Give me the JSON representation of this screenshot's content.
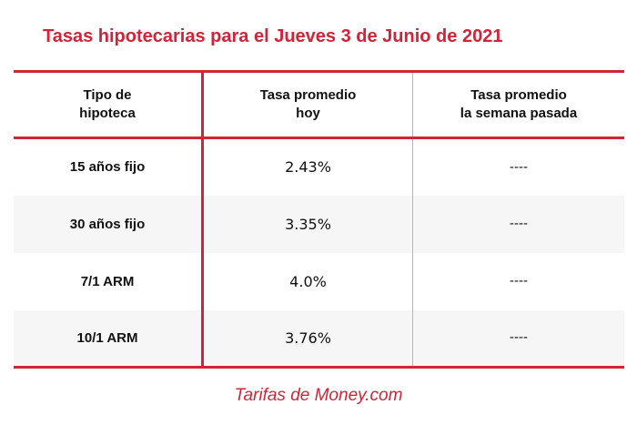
{
  "title": "Tasas hipotecarias para el Jueves 3 de Junio de 2021",
  "table": {
    "headers": [
      {
        "line1": "Tipo de",
        "line2": "hipoteca"
      },
      {
        "line1": "Tasa promedio",
        "line2": "hoy"
      },
      {
        "line1": "Tasa promedio",
        "line2": "la semana pasada"
      }
    ],
    "rows": [
      {
        "type": "15 años fijo",
        "today": "2.43%",
        "last_week": "----"
      },
      {
        "type": "30 años fijo",
        "today": "3.35%",
        "last_week": "----"
      },
      {
        "type": "7/1 ARM",
        "today": "4.0%",
        "last_week": "----"
      },
      {
        "type": "10/1 ARM",
        "today": "3.76%",
        "last_week": "----"
      }
    ]
  },
  "source": "Tarifas de Money.com",
  "colors": {
    "accent": "#d0243a",
    "row_shade": "#f6f6f6"
  }
}
